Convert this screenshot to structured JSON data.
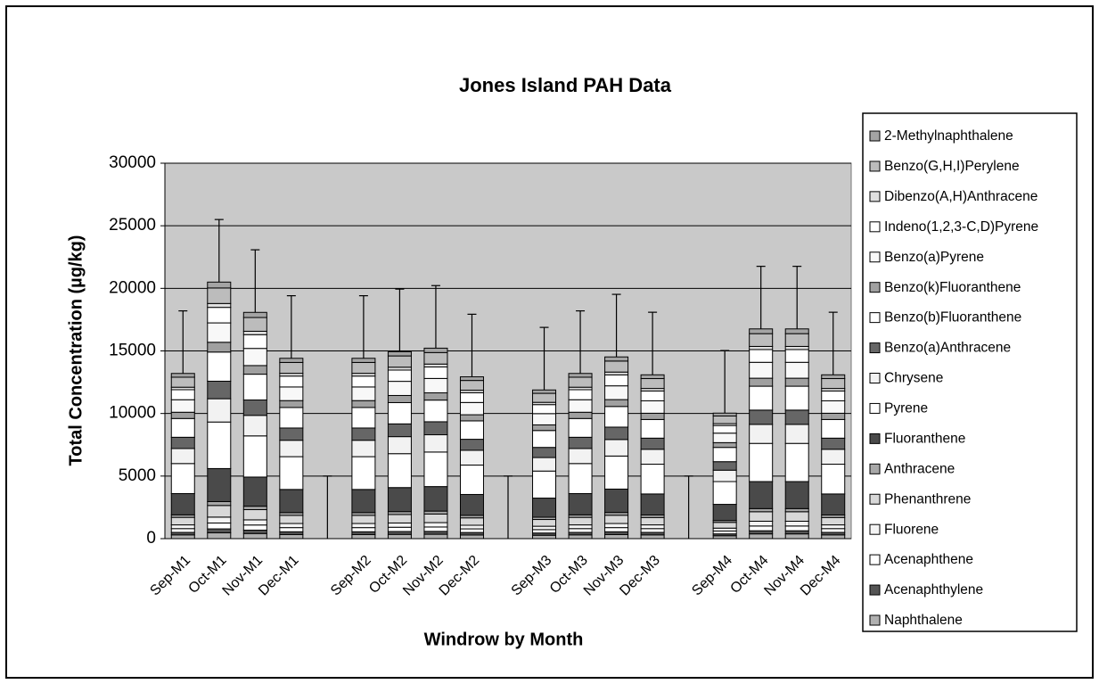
{
  "chart_data": {
    "type": "stacked_bar",
    "title": "Jones Island PAH Data",
    "x_label": "Windrow by Month",
    "y_label": "Total Concentration (µg/kg)",
    "categories": [
      "Sep-M1",
      "Oct-M1",
      "Nov-M1",
      "Dec-M1",
      null,
      "Sep-M2",
      "Oct-M2",
      "Nov-M2",
      "Dec-M2",
      null,
      "Sep-M3",
      "Oct-M3",
      "Nov-M3",
      "Dec-M3",
      null,
      "Sep-M4",
      "Oct-M4",
      "Nov-M4",
      "Dec-M4"
    ],
    "ylim": [
      0,
      30000
    ],
    "yticks": [
      0,
      5000,
      10000,
      15000,
      20000,
      25000,
      30000
    ],
    "grid": true,
    "legend": "right",
    "error": [
      5000,
      5000,
      5000,
      5000,
      5000,
      5000,
      5000,
      5000,
      5000,
      5000,
      5000,
      5000,
      5000,
      5000,
      5000,
      5000,
      5000,
      5000,
      5000
    ],
    "series": [
      {
        "name": "Naphthalene",
        "color": "#b0b0b0",
        "values": [
          300,
          470,
          410,
          330,
          0,
          330,
          340,
          350,
          290,
          0,
          270,
          300,
          330,
          300,
          0,
          230,
          380,
          380,
          300
        ]
      },
      {
        "name": "Acenaphthylene",
        "color": "#555555",
        "values": [
          200,
          310,
          270,
          220,
          0,
          220,
          230,
          230,
          200,
          0,
          180,
          200,
          220,
          200,
          0,
          150,
          250,
          250,
          200
        ]
      },
      {
        "name": "Acenaphthene",
        "color": "#ffffff",
        "values": [
          300,
          470,
          410,
          330,
          0,
          330,
          340,
          350,
          290,
          0,
          270,
          300,
          330,
          300,
          0,
          230,
          380,
          380,
          300
        ]
      },
      {
        "name": "Fluorene",
        "color": "#f4f4f4",
        "values": [
          300,
          470,
          410,
          330,
          0,
          330,
          340,
          350,
          290,
          0,
          270,
          300,
          330,
          300,
          0,
          230,
          380,
          380,
          300
        ]
      },
      {
        "name": "Phenanthrene",
        "color": "#d8d8d8",
        "values": [
          600,
          930,
          820,
          650,
          0,
          650,
          680,
          690,
          590,
          0,
          540,
          600,
          660,
          590,
          0,
          460,
          760,
          760,
          590
        ]
      },
      {
        "name": "Anthracene",
        "color": "#a8a8a8",
        "values": [
          200,
          310,
          270,
          220,
          0,
          220,
          230,
          230,
          200,
          0,
          180,
          200,
          220,
          200,
          0,
          150,
          250,
          250,
          200
        ]
      },
      {
        "name": "Fluoranthene",
        "color": "#4a4a4a",
        "values": [
          1700,
          2640,
          2330,
          1850,
          0,
          1850,
          1920,
          1960,
          1670,
          0,
          1530,
          1700,
          1870,
          1680,
          0,
          1290,
          2160,
          2160,
          1680
        ]
      },
      {
        "name": "Pyrene",
        "color": "#ffffff",
        "values": [
          2400,
          3720,
          3290,
          2620,
          0,
          2620,
          2710,
          2760,
          2350,
          0,
          2160,
          2400,
          2640,
          2380,
          0,
          1820,
          3050,
          3050,
          2380
        ]
      },
      {
        "name": "Chrysene",
        "color": "#f2f2f2",
        "values": [
          1200,
          1860,
          1640,
          1310,
          0,
          1310,
          1360,
          1380,
          1180,
          0,
          1080,
          1200,
          1320,
          1190,
          0,
          910,
          1520,
          1520,
          1190
        ]
      },
      {
        "name": "Benzo(a)Anthracene",
        "color": "#666666",
        "values": [
          900,
          1400,
          1230,
          980,
          0,
          980,
          1020,
          1040,
          880,
          0,
          810,
          900,
          990,
          890,
          0,
          680,
          1140,
          1140,
          890
        ]
      },
      {
        "name": "Benzo(b)Fluoranthene",
        "color": "#ffffff",
        "values": [
          1500,
          2330,
          2060,
          1640,
          0,
          1640,
          1700,
          1730,
          1470,
          0,
          1350,
          1500,
          1650,
          1490,
          0,
          1140,
          1910,
          1910,
          1490
        ]
      },
      {
        "name": "Benzo(k)Fluoranthene",
        "color": "#a0a0a0",
        "values": [
          500,
          780,
          690,
          550,
          0,
          550,
          570,
          580,
          490,
          0,
          450,
          500,
          550,
          500,
          0,
          380,
          640,
          640,
          500
        ]
      },
      {
        "name": "Benzo(a)Pyrene",
        "color": "#f8f8f8",
        "values": [
          1000,
          1550,
          1370,
          1090,
          0,
          1090,
          1130,
          1150,
          980,
          0,
          900,
          1000,
          1100,
          990,
          0,
          760,
          1270,
          1270,
          990
        ]
      },
      {
        "name": "Indeno(1,2,3-C,D)Pyrene",
        "color": "#ffffff",
        "values": [
          800,
          1240,
          1100,
          870,
          0,
          870,
          900,
          920,
          780,
          0,
          720,
          800,
          880,
          790,
          0,
          610,
          1020,
          1020,
          790
        ]
      },
      {
        "name": "Dibenzo(A,H)Anthracene",
        "color": "#e0e0e0",
        "values": [
          200,
          310,
          270,
          220,
          0,
          220,
          230,
          230,
          200,
          0,
          180,
          200,
          220,
          200,
          0,
          150,
          250,
          250,
          200
        ]
      },
      {
        "name": "Benzo(G,H,I)Perylene",
        "color": "#bcbcbc",
        "values": [
          800,
          1240,
          1100,
          870,
          0,
          870,
          900,
          920,
          780,
          0,
          720,
          800,
          880,
          790,
          0,
          610,
          1020,
          1020,
          790
        ]
      },
      {
        "name": "2-Methylnaphthalene",
        "color": "#a4a4a4",
        "values": [
          300,
          470,
          410,
          330,
          0,
          330,
          340,
          350,
          290,
          0,
          270,
          300,
          330,
          300,
          0,
          230,
          380,
          380,
          300
        ]
      }
    ]
  }
}
